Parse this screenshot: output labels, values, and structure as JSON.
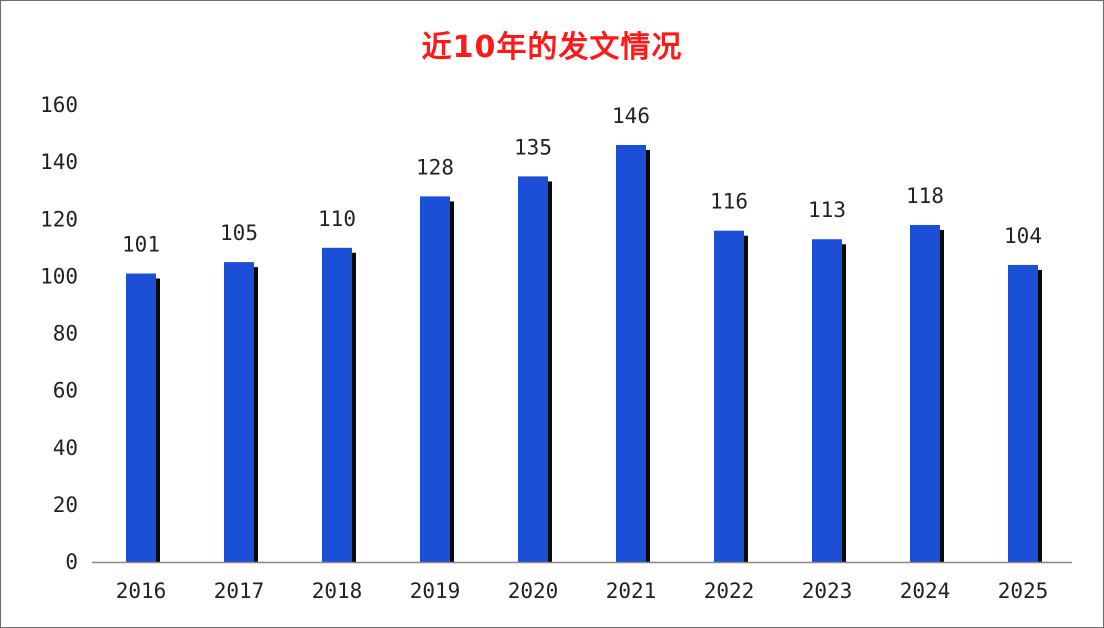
{
  "chart_data": {
    "type": "bar",
    "title": "近10年的发文情况",
    "categories": [
      "2016",
      "2017",
      "2018",
      "2019",
      "2020",
      "2021",
      "2022",
      "2023",
      "2024",
      "2025"
    ],
    "values": [
      101,
      105,
      110,
      128,
      135,
      146,
      116,
      113,
      118,
      104
    ],
    "data_labels": [
      "101",
      "105",
      "110",
      "128",
      "135",
      "146",
      "116",
      "113",
      "118",
      "104"
    ],
    "yticks": [
      "0",
      "20",
      "40",
      "60",
      "80",
      "100",
      "120",
      "140",
      "160"
    ],
    "ylim": [
      0,
      160
    ],
    "xlabel": "",
    "ylabel": "",
    "grid": false,
    "legend": "none",
    "colors": {
      "bar": "#1a4fd6",
      "shadow": "#0a0a0a",
      "title": "#ff1a1a",
      "axis": "#888888"
    }
  }
}
